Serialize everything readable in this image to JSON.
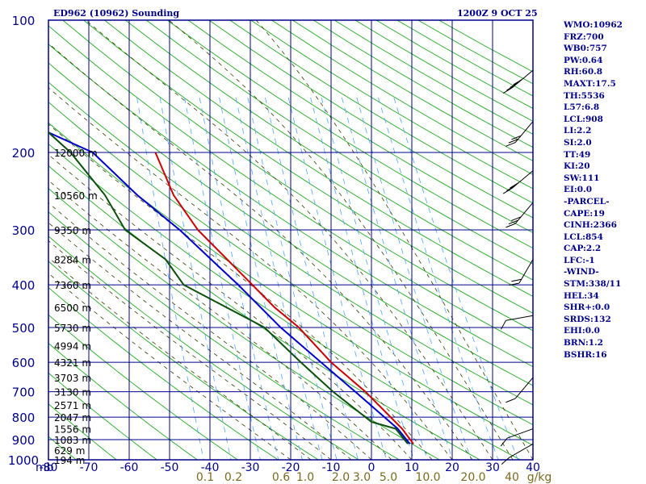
{
  "header": {
    "title": "ED962 (10962) Sounding",
    "time": "1200Z  9 OCT 25"
  },
  "indices": [
    "WMO:10962",
    "FRZ:700",
    "WB0:757",
    "PW:0.64",
    "RH:60.8",
    "MAXT:17.5",
    "TH:5536",
    "L57:6.8",
    "LCL:908",
    "LI:2.2",
    "SI:2.0",
    "TT:49",
    "KI:20",
    "SW:111",
    "EI:0.0",
    "-PARCEL-",
    "CAPE:19",
    "CINH:2366",
    "LCL:854",
    "CAP:2.2",
    "LFC:-1",
    "-WIND-",
    "STM:338/11",
    "HEL:34",
    "SHR+:0.0",
    "SRDS:132",
    "EHI:0.0",
    "BRN:1.2",
    "BSHR:16"
  ],
  "colors": {
    "frame": "#00008b",
    "dry_adiabat": "#22aa22",
    "moist_adiabat": "#3a3a00",
    "mixing_ratio": "#4da6ff",
    "temperature": "#cc0000",
    "parcel": "#0000cc",
    "dewpoint": "#0a500a",
    "mixing_label": "#7a6a20"
  },
  "chart_data": {
    "type": "line",
    "title": "ED962 (10962) Sounding",
    "xlabel": "mb",
    "ylabel": "",
    "xlim": [
      -80,
      40
    ],
    "ylim": [
      1000,
      100
    ],
    "log_y": true,
    "grid": true,
    "pressure_ticks": [
      100,
      200,
      300,
      400,
      500,
      600,
      700,
      800,
      900,
      1000
    ],
    "temp_ticks": [
      -80,
      -70,
      -60,
      -50,
      -40,
      -30,
      -20,
      -10,
      0,
      10,
      20,
      30,
      40
    ],
    "height_labels": [
      {
        "p": 200,
        "label": "12000 m"
      },
      {
        "p": 250,
        "label": "10560 m"
      },
      {
        "p": 300,
        "label": "9350 m"
      },
      {
        "p": 350,
        "label": "8284 m"
      },
      {
        "p": 400,
        "label": "7360 m"
      },
      {
        "p": 450,
        "label": "6500 m"
      },
      {
        "p": 500,
        "label": "5730 m"
      },
      {
        "p": 550,
        "label": "4994 m"
      },
      {
        "p": 600,
        "label": "4321 m"
      },
      {
        "p": 650,
        "label": "3703 m"
      },
      {
        "p": 700,
        "label": "3130 m"
      },
      {
        "p": 750,
        "label": "2571 m"
      },
      {
        "p": 800,
        "label": "2047 m"
      },
      {
        "p": 850,
        "label": "1556 m"
      },
      {
        "p": 900,
        "label": "1083 m"
      },
      {
        "p": 950,
        "label": "629 m"
      },
      {
        "p": 1000,
        "label": "194 m"
      }
    ],
    "mixing_ratio_labels": [
      "0.1",
      "0.2",
      "0.6",
      "1.0",
      "2.0",
      "3.0",
      "5.0",
      "10.0",
      "20.0",
      "40",
      "g/kg"
    ],
    "series": [
      {
        "key": "temperature",
        "points": [
          [
            920,
            10.4
          ],
          [
            850,
            7.6
          ],
          [
            700,
            -1.5
          ],
          [
            600,
            -10
          ],
          [
            500,
            -18
          ],
          [
            450,
            -24
          ],
          [
            400,
            -29.5
          ],
          [
            300,
            -43
          ],
          [
            250,
            -49
          ],
          [
            200,
            -53.5
          ]
        ]
      },
      {
        "key": "parcel",
        "points": [
          [
            920,
            9.5
          ],
          [
            850,
            6.5
          ],
          [
            700,
            -4
          ],
          [
            600,
            -12.5
          ],
          [
            500,
            -22.5
          ],
          [
            400,
            -33
          ],
          [
            300,
            -47.5
          ],
          [
            250,
            -58
          ],
          [
            200,
            -69
          ],
          [
            180,
            -80
          ]
        ]
      },
      {
        "key": "dewpoint",
        "points": [
          [
            920,
            9
          ],
          [
            850,
            6
          ],
          [
            820,
            0
          ],
          [
            700,
            -9.5
          ],
          [
            600,
            -17.5
          ],
          [
            500,
            -26.5
          ],
          [
            400,
            -46.5
          ],
          [
            350,
            -51
          ],
          [
            300,
            -61
          ],
          [
            250,
            -66
          ],
          [
            200,
            -74.5
          ],
          [
            180,
            -80
          ]
        ]
      }
    ],
    "wind_barbs": [
      {
        "p": 920,
        "dir": 300,
        "speed": 10
      },
      {
        "p": 850,
        "dir": 290,
        "speed": 10
      },
      {
        "p": 650,
        "dir": 320,
        "speed": 10
      },
      {
        "p": 470,
        "dir": 280,
        "speed": 10
      },
      {
        "p": 350,
        "dir": 330,
        "speed": 20
      },
      {
        "p": 260,
        "dir": 320,
        "speed": 30
      },
      {
        "p": 220,
        "dir": 310,
        "speed": 30
      },
      {
        "p": 170,
        "dir": 320,
        "speed": 30
      },
      {
        "p": 130,
        "dir": 310,
        "speed": 40
      }
    ]
  }
}
